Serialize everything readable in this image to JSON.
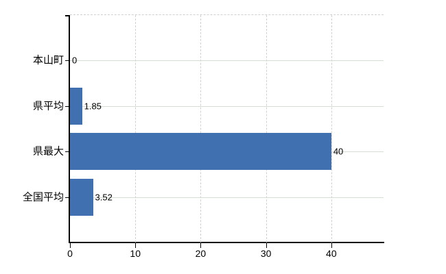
{
  "chart_data": {
    "type": "bar",
    "orientation": "horizontal",
    "title": "",
    "xlabel": "",
    "ylabel": "",
    "categories": [
      "本山町",
      "県平均",
      "県最大",
      "全国平均"
    ],
    "values": [
      0,
      1.85,
      40,
      3.52
    ],
    "value_labels": [
      "0",
      "1.85",
      "40",
      "3.52"
    ],
    "x_ticks": [
      0,
      10,
      20,
      30,
      40
    ],
    "x_tick_labels": [
      "0",
      "10",
      "20",
      "30",
      "40"
    ],
    "xlim": [
      0,
      48
    ],
    "grid": true,
    "legend": false
  },
  "colors": {
    "bar": "#4170b0",
    "axis": "#000000",
    "text": "#000000",
    "grid_horizontal": "#d5ddd5",
    "grid_vertical": "#d4cfd4",
    "background": "#ffffff"
  }
}
